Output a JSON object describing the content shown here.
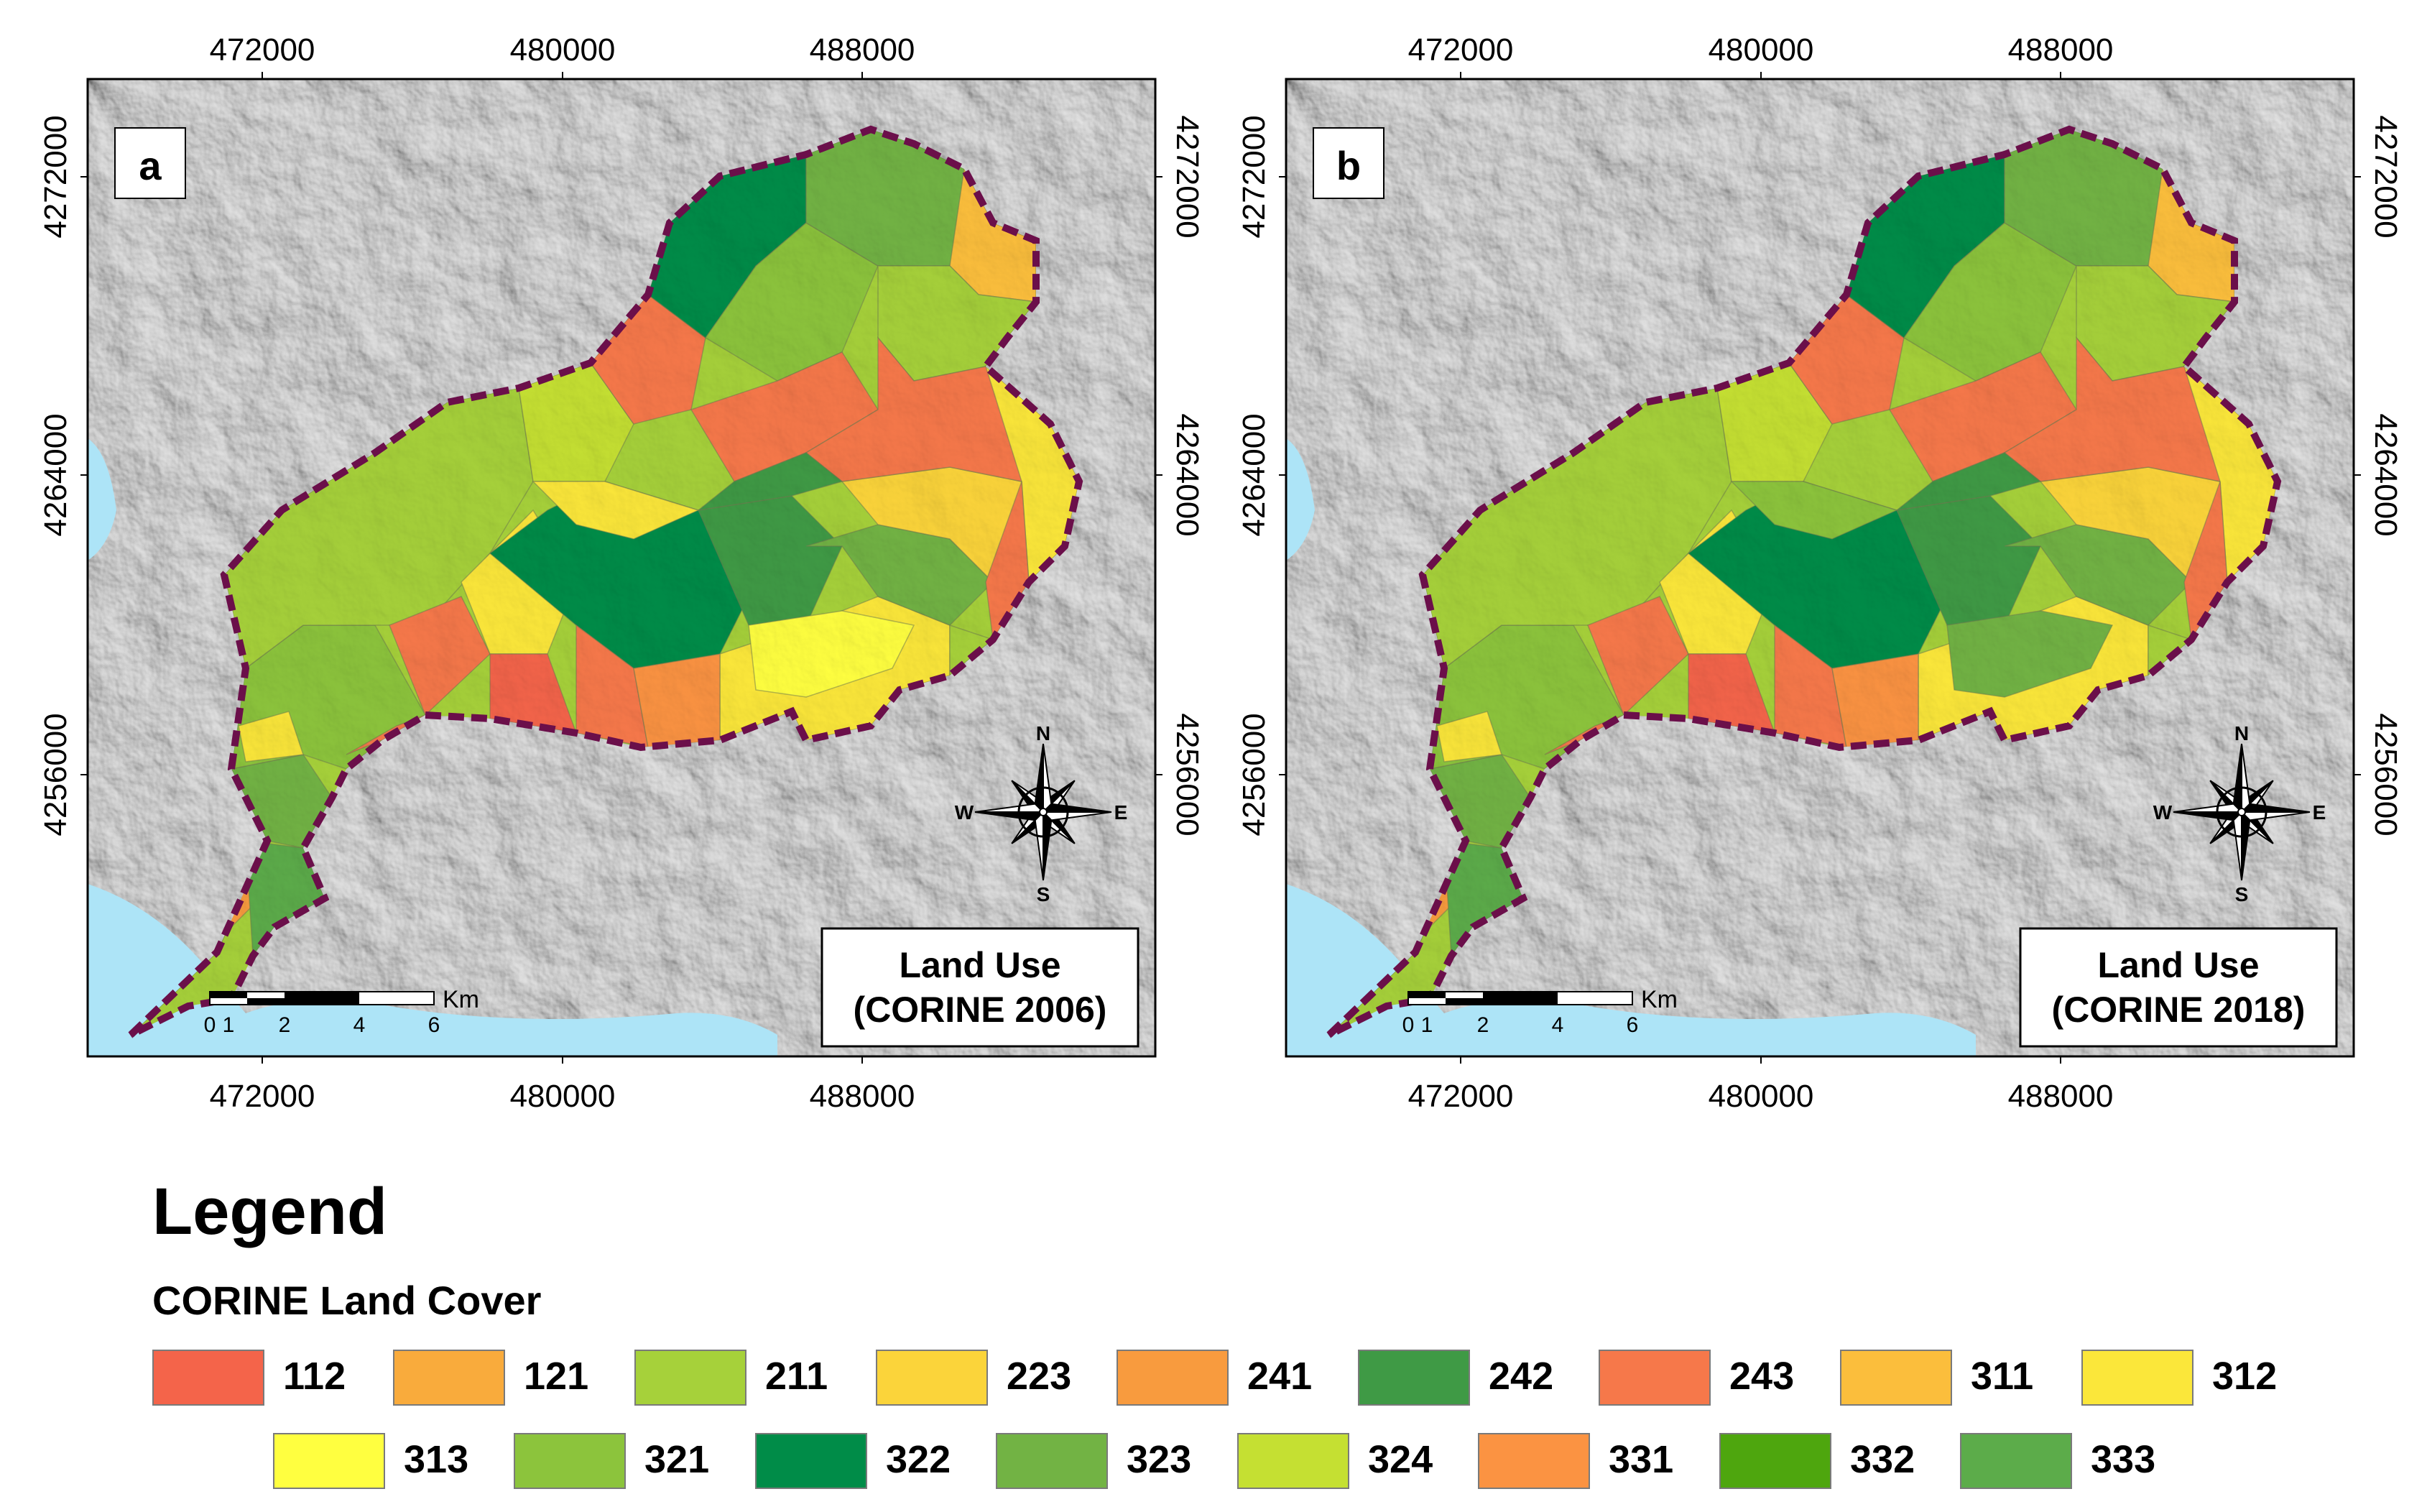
{
  "panels": [
    {
      "id": "a",
      "panel_label": "a",
      "title_line1": "Land Use",
      "title_line2": "(CORINE 2006)",
      "x_ticks": [
        "472000",
        "480000",
        "488000"
      ],
      "y_ticks": [
        "4272000",
        "4264000",
        "4256000"
      ],
      "scale_labels": [
        "0",
        "1",
        "2",
        "4",
        "6"
      ],
      "scale_unit": "Km",
      "compass": {
        "n": "N",
        "s": "S",
        "e": "E",
        "w": "W"
      }
    },
    {
      "id": "b",
      "panel_label": "b",
      "title_line1": "Land Use",
      "title_line2": "(CORINE 2018)",
      "x_ticks": [
        "472000",
        "480000",
        "488000"
      ],
      "y_ticks": [
        "4272000",
        "4264000",
        "4256000"
      ],
      "scale_labels": [
        "0",
        "1",
        "2",
        "4",
        "6"
      ],
      "scale_unit": "Km",
      "compass": {
        "n": "N",
        "s": "S",
        "e": "E",
        "w": "W"
      }
    }
  ],
  "legend": {
    "title": "Legend",
    "subtitle": "CORINE Land Cover",
    "items": [
      {
        "code": "112",
        "color": "#f4644a"
      },
      {
        "code": "121",
        "color": "#f9ab3c"
      },
      {
        "code": "211",
        "color": "#a6d13a"
      },
      {
        "code": "223",
        "color": "#fbd43a"
      },
      {
        "code": "241",
        "color": "#f89b3e"
      },
      {
        "code": "242",
        "color": "#3f9a45"
      },
      {
        "code": "243",
        "color": "#f6784a"
      },
      {
        "code": "311",
        "color": "#fbbe3c"
      },
      {
        "code": "312",
        "color": "#fbe73a"
      },
      {
        "code": "313",
        "color": "#ffff40"
      },
      {
        "code": "321",
        "color": "#8cc43c"
      },
      {
        "code": "322",
        "color": "#008c48"
      },
      {
        "code": "323",
        "color": "#72b344"
      },
      {
        "code": "324",
        "color": "#c5e032"
      },
      {
        "code": "331",
        "color": "#fb9342"
      },
      {
        "code": "332",
        "color": "#4ea60e"
      },
      {
        "code": "333",
        "color": "#5cac4a"
      }
    ]
  }
}
